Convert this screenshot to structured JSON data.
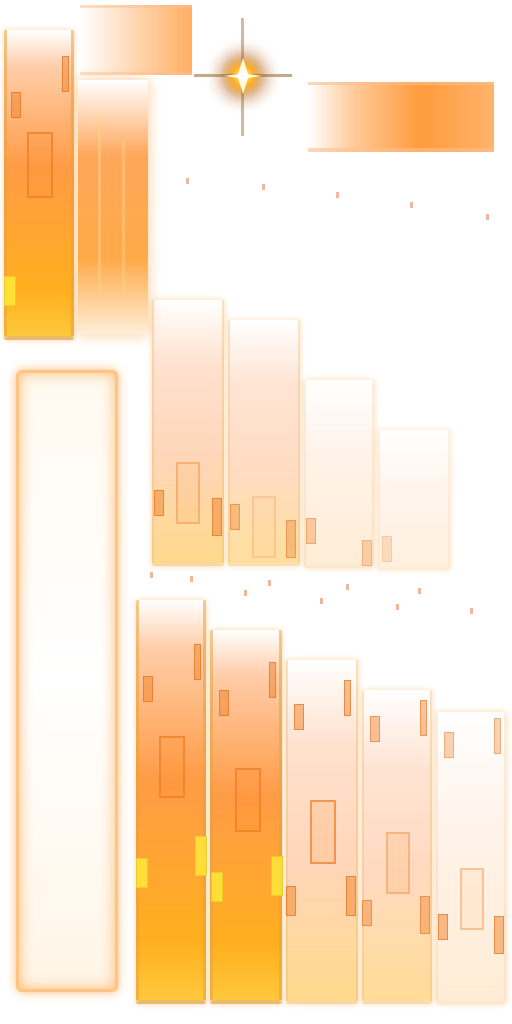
{
  "sprite_sheet": {
    "background": "#ffffff",
    "accent_colors": [
      "#ff9a2e",
      "#ffb020",
      "#ffd6b8",
      "#f0e040"
    ],
    "sparkle_icon": "four-point-star-flare",
    "groups": [
      {
        "name": "top-left-bars",
        "count": 2
      },
      {
        "name": "horizontal-glow-strips",
        "count": 2
      },
      {
        "name": "panel-frame",
        "count": 1
      },
      {
        "name": "fading-bars-row",
        "count": 4
      },
      {
        "name": "bottom-bars-row",
        "count": 5
      }
    ]
  }
}
